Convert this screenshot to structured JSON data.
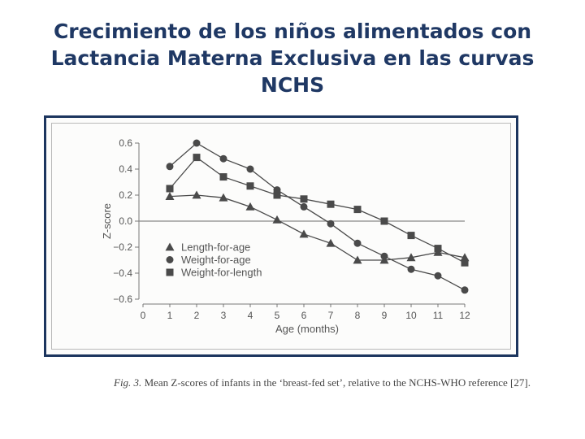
{
  "slide": {
    "title_lines": [
      "Crecimiento de los niños alimentados con",
      "Lactancia Materna Exclusiva en las curvas",
      "NCHS"
    ]
  },
  "chart_data": {
    "type": "line",
    "title": "",
    "xlabel": "Age (months)",
    "ylabel": "Z-score",
    "x": [
      1,
      2,
      3,
      4,
      5,
      6,
      7,
      8,
      9,
      10,
      11,
      12
    ],
    "xticks": [
      0,
      1,
      2,
      3,
      4,
      5,
      6,
      7,
      8,
      9,
      10,
      11,
      12
    ],
    "xlim": [
      0,
      12
    ],
    "ylim": [
      -0.6,
      0.6
    ],
    "yticks": [
      0.6,
      0.4,
      0.2,
      0.0,
      -0.2,
      -0.4,
      -0.6
    ],
    "ytick_labels": [
      "0.6",
      "0.4",
      "0.2",
      "0.0",
      "−0.2",
      "−0.4",
      "−0.6"
    ],
    "reference_line": 0.0,
    "legend_position": "bottom-left",
    "series": [
      {
        "name": "Length-for-age",
        "marker": "triangle",
        "values": [
          0.19,
          0.2,
          0.18,
          0.11,
          0.01,
          -0.1,
          -0.17,
          -0.3,
          -0.3,
          -0.28,
          -0.24,
          -0.28
        ]
      },
      {
        "name": "Weight-for-age",
        "marker": "circle",
        "values": [
          0.42,
          0.6,
          0.48,
          0.4,
          0.24,
          0.11,
          -0.02,
          -0.17,
          -0.27,
          -0.37,
          -0.42,
          -0.53
        ]
      },
      {
        "name": "Weight-for-length",
        "marker": "square",
        "values": [
          0.25,
          0.49,
          0.34,
          0.27,
          0.2,
          0.17,
          0.13,
          0.09,
          0.0,
          -0.11,
          -0.21,
          -0.32
        ]
      }
    ],
    "colors": {
      "marker": "#4a4a4a",
      "axis": "#777777",
      "text": "#555555",
      "reference": "#888888"
    }
  },
  "caption": {
    "label": "Fig. 3.",
    "text": "Mean Z-scores of infants in the ‘breast-fed set’, relative to the NCHS-WHO reference [27]."
  }
}
